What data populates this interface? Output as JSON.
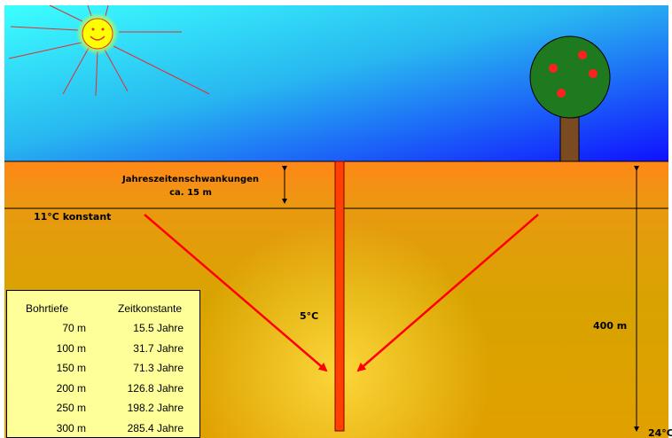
{
  "labels": {
    "seasonal_title": "Jahreszeitenschwankungen",
    "seasonal_depth": "ca. 15 m",
    "constant_temp": "11°C konstant",
    "probe_temp": "5°C",
    "total_depth": "400 m",
    "bottom_temp": "24°C"
  },
  "table": {
    "headers": [
      "Bohrtiefe",
      "Zeitkonstante"
    ],
    "rows": [
      [
        "70  m",
        "15.5 Jahre"
      ],
      [
        "100  m",
        "31.7 Jahre"
      ],
      [
        "150  m",
        "71.3 Jahre"
      ],
      [
        "200  m",
        "126.8 Jahre"
      ],
      [
        "250  m",
        "198.2 Jahre"
      ],
      [
        "300  m",
        "285.4 Jahre"
      ]
    ]
  },
  "colors": {
    "sky_top": "#33ffff",
    "sky_bottom": "#1a1aff",
    "ground_top": "#ff8a1a",
    "ground_mid": "#d9a000",
    "arrow": "#ff0000",
    "sun": "#ffff00",
    "ray": "#e03030",
    "tree_crown": "#1f7a1f",
    "tree_trunk": "#7a4a20",
    "table_bg": "#ffff99"
  }
}
